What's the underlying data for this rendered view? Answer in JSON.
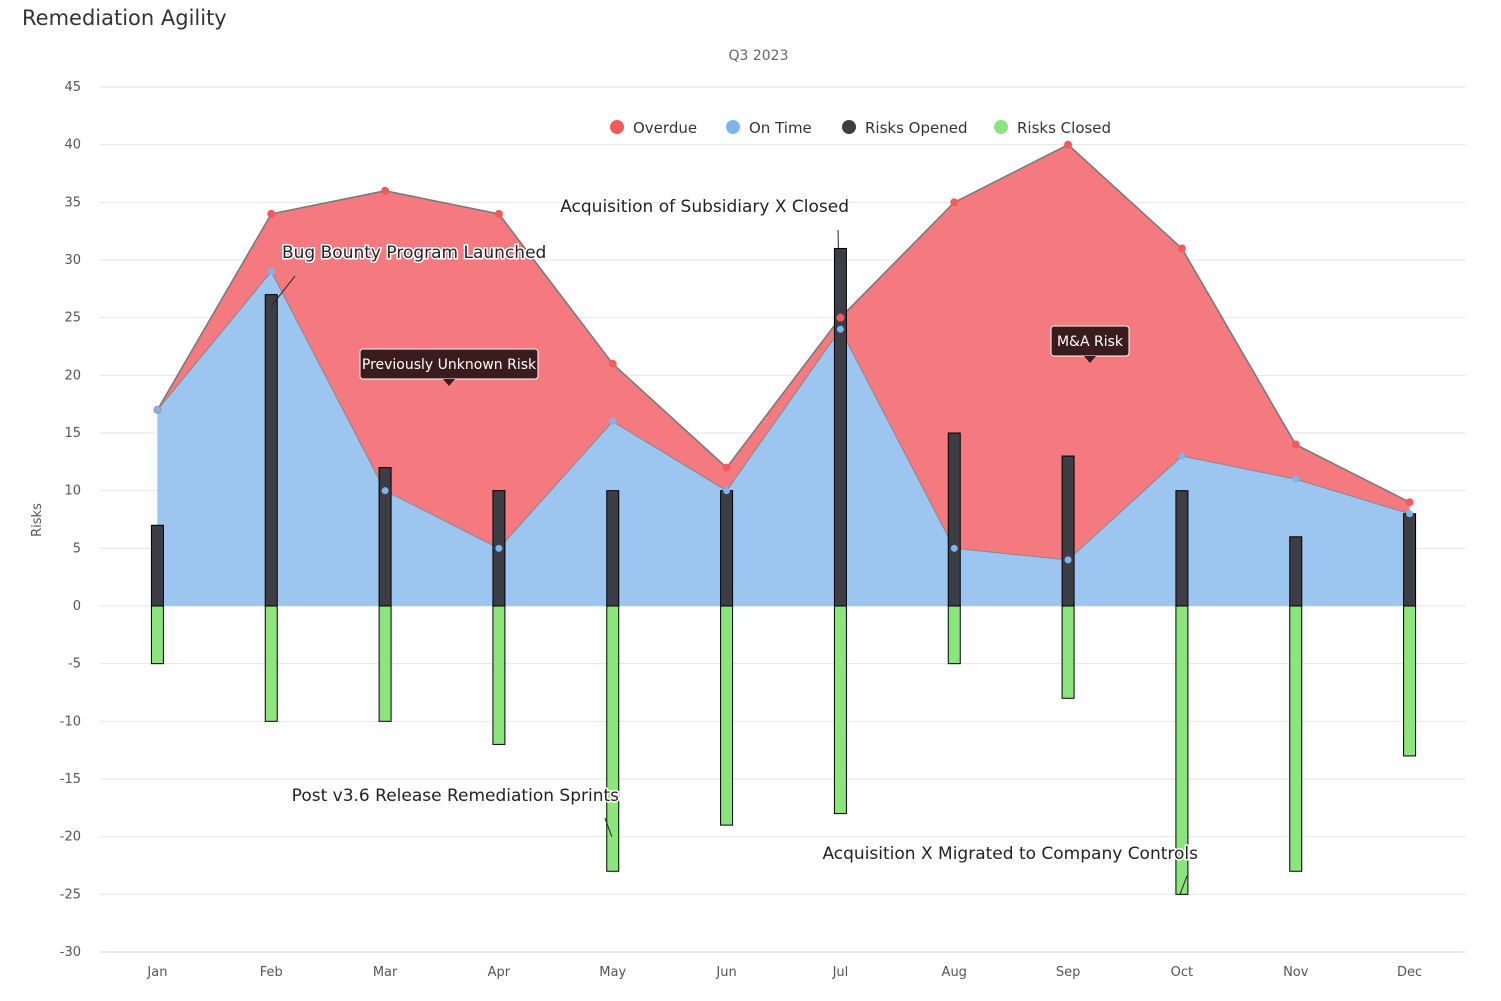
{
  "title": "Remediation Agility",
  "subtitle": "Q3 2023",
  "colors": {
    "overdue": "#f47a80",
    "on_time": "#9cc5f0",
    "opened": "#3d3d45",
    "closed": "#8ce47d",
    "overdue_marker": "#f45b5b",
    "on_time_marker": "#7cb5ec",
    "callout_bg": "#3a1c1c"
  },
  "chart_data": {
    "type": "area",
    "title": "Remediation Agility",
    "subtitle": "Q3 2023",
    "ylabel": "Risks",
    "xlabel": "",
    "ylim": [
      -30,
      45
    ],
    "yticks": [
      45,
      40,
      35,
      30,
      25,
      20,
      15,
      10,
      5,
      0,
      -5,
      -10,
      -15,
      -20,
      -25,
      -30
    ],
    "categories": [
      "Jan",
      "Feb",
      "Mar",
      "Apr",
      "May",
      "Jun",
      "Jul",
      "Aug",
      "Sep",
      "Oct",
      "Nov",
      "Dec"
    ],
    "grid": true,
    "legend_position": "top-right",
    "series": [
      {
        "name": "Overdue",
        "type": "area",
        "values": [
          17,
          34,
          36,
          34,
          21,
          12,
          25,
          35,
          40,
          31,
          14,
          9
        ]
      },
      {
        "name": "On Time",
        "type": "area",
        "values": [
          17,
          29,
          10,
          5,
          16,
          10,
          24,
          5,
          4,
          13,
          11,
          8
        ]
      },
      {
        "name": "Risks Opened",
        "type": "bar",
        "values": [
          7,
          27,
          12,
          10,
          10,
          10,
          31,
          15,
          13,
          10,
          6,
          8
        ]
      },
      {
        "name": "Risks Closed",
        "type": "bar",
        "values": [
          -5,
          -10,
          -10,
          -12,
          -23,
          -19,
          -18,
          -5,
          -8,
          -25,
          -23,
          -13
        ]
      }
    ],
    "annotations": [
      {
        "text": "Bug Bounty Program Launched",
        "month": "Feb",
        "style": "label"
      },
      {
        "text": "Acquisition of Subsidiary X Closed",
        "month": "Jul",
        "style": "label"
      },
      {
        "text": "Post v3.6 Release Remediation Sprints",
        "month": "May",
        "style": "label"
      },
      {
        "text": "Acquisition X Migrated to Company Controls",
        "month": "Oct",
        "style": "label"
      },
      {
        "text": "Previously Unknown Risk",
        "month": "Mar",
        "style": "callout"
      },
      {
        "text": "M&A Risk",
        "month": "Sep",
        "style": "callout"
      }
    ]
  }
}
